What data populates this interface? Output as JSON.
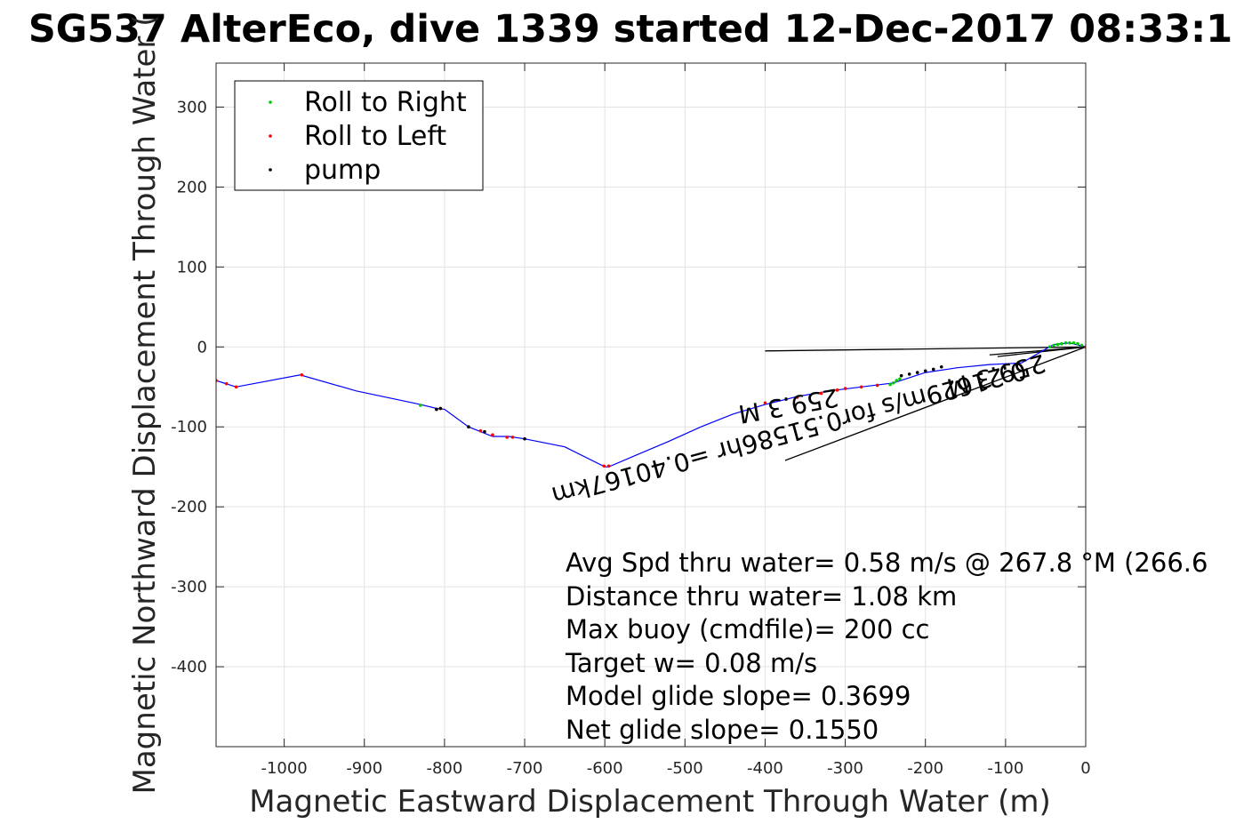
{
  "colors": {
    "track": "#0000ff",
    "roll_right": "#00cc00",
    "roll_left": "#ff0000",
    "pump": "#000000",
    "grid": "#e3e3e3",
    "axis": "#262626"
  },
  "chart_data": {
    "type": "scatter",
    "title": "SG537 AlterEco, dive 1339 started 12-Dec-2017 08:33:1",
    "xlabel": "Magnetic Eastward Displacement Through Water (m)",
    "ylabel": "Magnetic Northward Displacement Through Water (",
    "xlim": [
      -1085,
      0
    ],
    "ylim": [
      -500,
      355
    ],
    "xticks": [
      -1000,
      -900,
      -800,
      -700,
      -600,
      -500,
      -400,
      -300,
      -200,
      -100,
      0
    ],
    "xtick_labels": [
      "-1000",
      "-900",
      "-800",
      "-700",
      "-600",
      "-500",
      "-400",
      "-300",
      "-200",
      "-100",
      "0"
    ],
    "yticks": [
      300,
      200,
      100,
      0,
      -100,
      -200,
      -300,
      -400
    ],
    "ytick_labels": [
      "300",
      "200",
      "100",
      "0",
      "-100",
      "-200",
      "-300",
      "-400"
    ],
    "grid": true,
    "legend_position": "top-left",
    "legend": [
      {
        "label": "Roll to Right",
        "color_key": "roll_right"
      },
      {
        "label": "Roll to Left",
        "color_key": "roll_left"
      },
      {
        "label": "pump",
        "color_key": "pump"
      }
    ],
    "series": [
      {
        "name": "track",
        "x": [
          0,
          -20,
          -40,
          -80,
          -120,
          -160,
          -200,
          -240,
          -280,
          -320,
          -360,
          -400,
          -440,
          -480,
          -520,
          -560,
          -595,
          -600,
          -650,
          -700,
          -720,
          -740,
          -770,
          -800,
          -810,
          -830,
          -910,
          -980,
          -1060,
          -1085
        ],
        "y": [
          0,
          5,
          3,
          -20,
          -22,
          -26,
          -32,
          -45,
          -50,
          -55,
          -62,
          -72,
          -84,
          -100,
          -118,
          -135,
          -150,
          -150,
          -125,
          -115,
          -112,
          -112,
          -100,
          -78,
          -77,
          -72,
          -55,
          -35,
          -50,
          -42
        ]
      },
      {
        "name": "Roll to Right",
        "x": [
          -5,
          -10,
          -15,
          -20,
          -25,
          -30,
          -35,
          -40,
          -45,
          -232,
          -236,
          -240,
          -244,
          -830
        ],
        "y": [
          2,
          4,
          5,
          5,
          5,
          4,
          3,
          2,
          0,
          -40,
          -42,
          -45,
          -47,
          -73
        ]
      },
      {
        "name": "Roll to Left",
        "x": [
          0,
          -260,
          -280,
          -300,
          -310,
          -330,
          -360,
          -400,
          -595,
          -601,
          -715,
          -722,
          -740,
          -755,
          -805,
          -810,
          -978,
          -1060,
          -1072,
          -1085
        ],
        "y": [
          0,
          -48,
          -50,
          -52,
          -54,
          -58,
          -63,
          -70,
          -149,
          -149,
          -113,
          -113,
          -110,
          -105,
          -77,
          -78,
          -35,
          -50,
          -46,
          -42
        ]
      },
      {
        "name": "pump",
        "x": [
          -180,
          -190,
          -200,
          -210,
          -220,
          -230,
          -700,
          -750,
          -770,
          -805,
          -810
        ],
        "y": [
          -25,
          -28,
          -30,
          -32,
          -34,
          -36,
          -115,
          -106,
          -100,
          -77,
          -78
        ]
      }
    ],
    "guide_lines": [
      {
        "x": [
          0,
          -400
        ],
        "y": [
          0,
          -5
        ]
      },
      {
        "x": [
          0,
          -375
        ],
        "y": [
          0,
          -142
        ]
      },
      {
        "x": [
          0,
          -120
        ],
        "y": [
          0,
          -10
        ]
      },
      {
        "x": [
          0,
          -110
        ],
        "y": [
          0,
          -12
        ]
      }
    ],
    "stats": [
      "Avg Spd thru water=  0.58 m/s @ 267.8 °M (266.6",
      "Distance thru water=  1.08 km",
      "Max buoy (cmdfile)= 200 cc",
      "Target w= 0.08 m/s",
      "Model glide slope= 0.3699",
      "Net glide slope= 0.1550"
    ],
    "rotated_annotations": [
      "0.21629m/s for0.51586hr =0.40167km",
      "259.3 M",
      "259.3 M"
    ]
  }
}
